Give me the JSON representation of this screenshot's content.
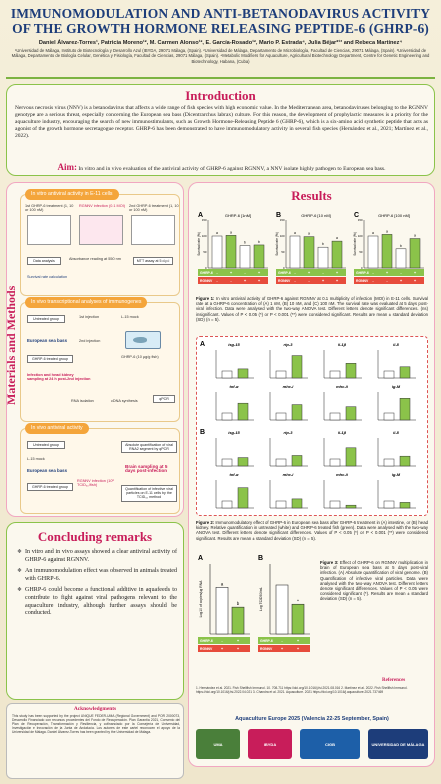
{
  "header": {
    "title": "IMMUNOMODULATION AND ANTI-BETANODAVIRUS ACTIVITY OF THE GROWTH HORMONE RELEASING PEPTIDE-6 (GHRP-6)",
    "authors": "Daniel Álvarez-Torres¹, Patricia Moreno¹², M. Carmen Alonso¹², E. García-Rosado¹², Mario P. Estrada⁴, Julia Béjar*¹³ and Rebeca Martínez⁴",
    "affiliations": "¹Universidad de Málaga, Instituto de Biotecnología y Desarrollo Azul (IBYDA, 29071 Málaga, (Spain). ²Universidad de Málaga, Departamento de Microbiología, Facultad de Ciencias, 29071 Málaga, (Spain). ³Universidad de Málaga, Departamento de Biología Celular, Genética y Fisiología, Facultad de Ciencias, 29071 Málaga, (Spain). ⁴Metabolic Modifiers for Aquaculture, Agricultural Biotechnology Department, Centre for Genetic Engineering and Biotechnology, Habana, (Cuba)"
  },
  "intro": {
    "title": "Introduction",
    "text": "Nervous necrosis virus (NNV) is a betanodavirus that affects a wide range of fish species with high economic value. In the Mediterranean area, betanodaviruses belonging to the RGNNV genotype are a serious threat, especially concerning the European sea bass (Dicentrarchus labrax) culture. For this reason, the development of prophylactic measures is a priority for the aquaculture industry, encouraging the search of new immunostimulants, such as Growth Hormone-Releasing Peptide 6 (GHRP-6), which is a six-amino acid synthetic peptide that acts as agonist of the growth hormone secretagogue receptor. GHRP-6 has been demonstrated to have immunomodulatory activity in several fish species (Hernández et al., 2021; Martínez et al., 2022).",
    "aim_label": "Aim:",
    "aim_text": "In vitro and in vivo evaluation of the antiviral activity of GHRP-6 against RGNNV, a NNV isolate highly pathogen to European sea bass."
  },
  "methods": {
    "vertical_title": "Materials and Methods",
    "block1": {
      "tag": "In vitro antiviral activity in E-11 cells",
      "plate1": "1st GHRP-6 treatment (1, 10 or 100 nM)",
      "plate2": "RGNNV infection (0.1 MOI)",
      "plate3": "2nd GHRP-6 treatment (1, 10 or 100 nM)",
      "data": "Data analysis",
      "absorbance": "Absorbance reading at 550 nm",
      "mtt": "MTT assay at 5 d.p.i",
      "survival": "Survival rate calculation"
    },
    "block2": {
      "tag": "In vivo transcriptional analyses of immunogenes",
      "untreated": "Untreated group",
      "seabass": "European sea bass",
      "ghrp": "GHRP-6 treated group",
      "first": "1st injection",
      "second": "2nd injection",
      "l15": "L-15 mock",
      "dose": "GHRP-6 (10 µg/g fish)",
      "kidney": "Infection and head kidney sampling at 24 h post-2nd injection",
      "rna": "RNA isolation",
      "cdna": "cDNA synthesis",
      "qpcr": "qPCR"
    },
    "block3": {
      "tag": "In vivo antiviral activity",
      "untreated": "Untreated group",
      "l15": "L-15 mock",
      "seabass": "European sea bass",
      "ghrp": "GHRP-6 treated group",
      "rgnnv": "RGNNV infection (10⁶ TCID₅₀/fish)",
      "quant": "Absolute quantification of viral RNA2 segment by qPCR",
      "brain": "Brain sampling at 5 days post-infection",
      "infective": "Quantification of infective viral particles on E-11 cells by the TCID₅₀ method"
    }
  },
  "conclusions": {
    "title": "Concluding remarks",
    "items": [
      "In vitro and in vivo assays showed a clear antiviral activity of GHRP-6 against RGNNV.",
      "An immunomodulation effect was observed in animals treated with GHRP-6.",
      "GHRP-6 could become a functional additive in aquafeeds to contribute to fight against viral pathogens relevant to the aquaculture industry, although further assays should be conducted."
    ]
  },
  "acknowledgments": {
    "title": "Acknowledgments",
    "text": "This study has been supported by the project UNIQUE FEDER-UMA (Regional Government) and POR 2000073, Desarrollo Financiado con recursos procedentes del Fondo de Recuperación. Plan Garantía 2021, Convenio del Plan de Recuperación, Transformación y Resiliencia, y cofinanciado por la Consejería de Universidad, Investigación e Innovación de la Junta de Andalucía. Los autores de este cartel reconocen el apoyo de la Universidad de Málaga. Daniel Álvarez-Torres has been granted by the Universidad de Málaga."
  },
  "results": {
    "title": "Results",
    "fig1": {
      "caption_label": "Figure 1:",
      "caption": "In vitro antiviral activity of GHRP-6 against RGNNV at 0.1 multiplicity of infection (MOI) in E-11 cells. Survival rate at a GHRP-6 concentration of (A) 1 nM, (B) 10 nM, and (C) 100 nM. The survival rate was evaluated at 5 days post-viral infection. Data were analysed with the two-way ANOVA test. Different letters denote significant differences. (ns) insignificant. Values of P < 0.05 (*) or P < 0.001 (**) were considered significant. Results are mean ± standard deviation (SD) (n = 5)."
    },
    "fig2": {
      "caption_label": "Figure 2:",
      "caption": "Immunomodulatory effect of GHRP-6 in European sea bass after GHRP-6 treatment in (A) intestine, or (B) head kidney. Relative quantification in untreated (white) and GHRP-6 treated fish (green). Data were analysed with the two-way ANOVA test. Different letters denote significant differences. Values of P < 0.05 (*) or P < 0.001 (**) were considered significant. Results are mean ± standard deviation (SD) (n = 5)."
    },
    "fig3": {
      "caption_label": "Figure 3:",
      "caption": "Effect of GHRP-6 on RGNNV multiplication in brain of European sea bass at 5 days post-viral infection. (A) Absolute quantification of viral genome. (B) Quantification of infective viral particles. Data were analysed with the two-way ANOVA test. Different letters denote significant differences. Values of P < 0.05 were considered significant (*). Results are mean ± standard deviation (SD) (n = 5)."
    },
    "references_title": "References",
    "references": "1. Hernández et al. 2021. Fish Shellfish Immunol. 10. 708-711 https://doi.org/10.1016/j.fsi.2021.08.016  2. Martínez et al. 2022. Fish Shellfish Immunol. https://doi.org/10.1016/j.fsi.2022.04.021  3. Chandra et al. 2021. Aquaculture. 2021 https://doi.org/10.1016/j.aquaculture.2021.737469",
    "conference": "Aquaculture Europe 2025 (Valencia 22-25 September, Spain)"
  },
  "chart_data": [
    {
      "type": "bar",
      "title": "GHRP-6 [1nM]",
      "panel": "A",
      "ylabel": "Survival rate (%)",
      "ylim": [
        0,
        150
      ],
      "categories": [
        "-/-",
        "+/-",
        "-/+",
        "+/+"
      ],
      "values": [
        100,
        102,
        70,
        72
      ],
      "labels": [
        "a",
        "a",
        "b",
        "b"
      ],
      "row_labels": [
        "GHRP-6",
        "RGNNV"
      ]
    },
    {
      "type": "bar",
      "title": "GHRP-6 [10 nM]",
      "panel": "B",
      "ylabel": "Survival rate (%)",
      "ylim": [
        0,
        150
      ],
      "categories": [
        "-/-",
        "+/-",
        "-/+",
        "+/+"
      ],
      "values": [
        100,
        98,
        65,
        84
      ],
      "labels": [
        "a",
        "a",
        "b",
        "a"
      ],
      "row_labels": [
        "GHRP-6",
        "RGNNV"
      ]
    },
    {
      "type": "bar",
      "title": "GHRP-6 [100 nM]",
      "panel": "C",
      "ylabel": "Survival rate (%)",
      "ylim": [
        0,
        150
      ],
      "categories": [
        "-/-",
        "+/-",
        "-/+",
        "+/+"
      ],
      "values": [
        100,
        105,
        60,
        92
      ],
      "labels": [
        "a",
        "a",
        "b",
        "a"
      ],
      "row_labels": [
        "GHRP-6",
        "RGNNV"
      ]
    },
    {
      "type": "bar",
      "panel": "2A",
      "genes": [
        "isg-15",
        "rtp-3",
        "il-1β",
        "il-8",
        "tnf-α",
        "mhc-i",
        "mhc-ii",
        "ig-M"
      ],
      "control": [
        1,
        1,
        1,
        1,
        1,
        1,
        1,
        1
      ],
      "treated": [
        1.3,
        3.2,
        2.1,
        1.6,
        2.4,
        2.2,
        1.9,
        3.1
      ],
      "ylabel": "Relative expression to Ctrl"
    },
    {
      "type": "bar",
      "panel": "2B",
      "genes": [
        "isg-15",
        "rtp-3",
        "il-1β",
        "il-8",
        "tnf-α",
        "mhc-i",
        "mhc-ii",
        "ig-M"
      ],
      "control": [
        1,
        1,
        1,
        1,
        1,
        1,
        1,
        1
      ],
      "treated": [
        1.2,
        1.5,
        2.6,
        1.4,
        2.9,
        1.3,
        0.4,
        0.8
      ],
      "ylabel": "Relative expression to Ctrl"
    },
    {
      "type": "bar",
      "panel": "3A",
      "categories": [
        "-/+",
        "+/+"
      ],
      "values": [
        4.0,
        2.3
      ],
      "ylabel": "Log10 of copies/µg RNA",
      "ylim": [
        0,
        6
      ],
      "labels": [
        "a",
        "b"
      ]
    },
    {
      "type": "bar",
      "panel": "3B",
      "categories": [
        "-/+",
        "+/+"
      ],
      "values": [
        5.6,
        3.4
      ],
      "ylabel": "Log TCID50/mL",
      "ylim": [
        0,
        8
      ],
      "labels": [
        "",
        "*"
      ]
    }
  ],
  "colors": {
    "title_blue": "#1d3d7a",
    "section_pink": "#c81d5a",
    "green_bar": "#8bc34a",
    "control_bar": "#ffffff",
    "frame_green": "#8bc34a",
    "frame_pink": "#f1a7c1"
  },
  "logos": [
    "UMA",
    "IBYDA",
    "CIGB",
    "UNIVERSIDAD DE MÁLAGA"
  ]
}
